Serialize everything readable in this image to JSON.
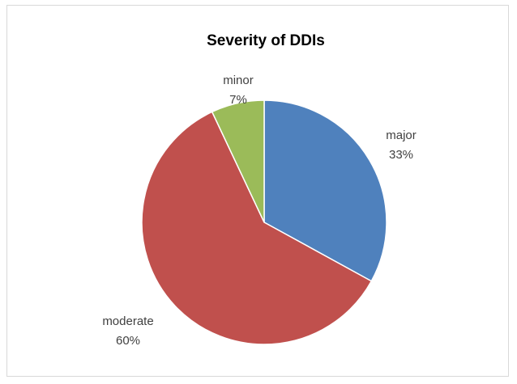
{
  "chart_data": {
    "type": "pie",
    "title": "Severity of DDIs",
    "slices": [
      {
        "label": "major",
        "value": 33,
        "pct_label": "33%",
        "color": "#4f81bd"
      },
      {
        "label": "moderate",
        "value": 60,
        "pct_label": "60%",
        "color": "#c0504d"
      },
      {
        "label": "minor",
        "value": 7,
        "pct_label": "7%",
        "color": "#9bbb59"
      }
    ],
    "start_angle": "12 o'clock",
    "direction": "clockwise",
    "legend": "none",
    "data_labels": "category and percentage, outside end"
  }
}
